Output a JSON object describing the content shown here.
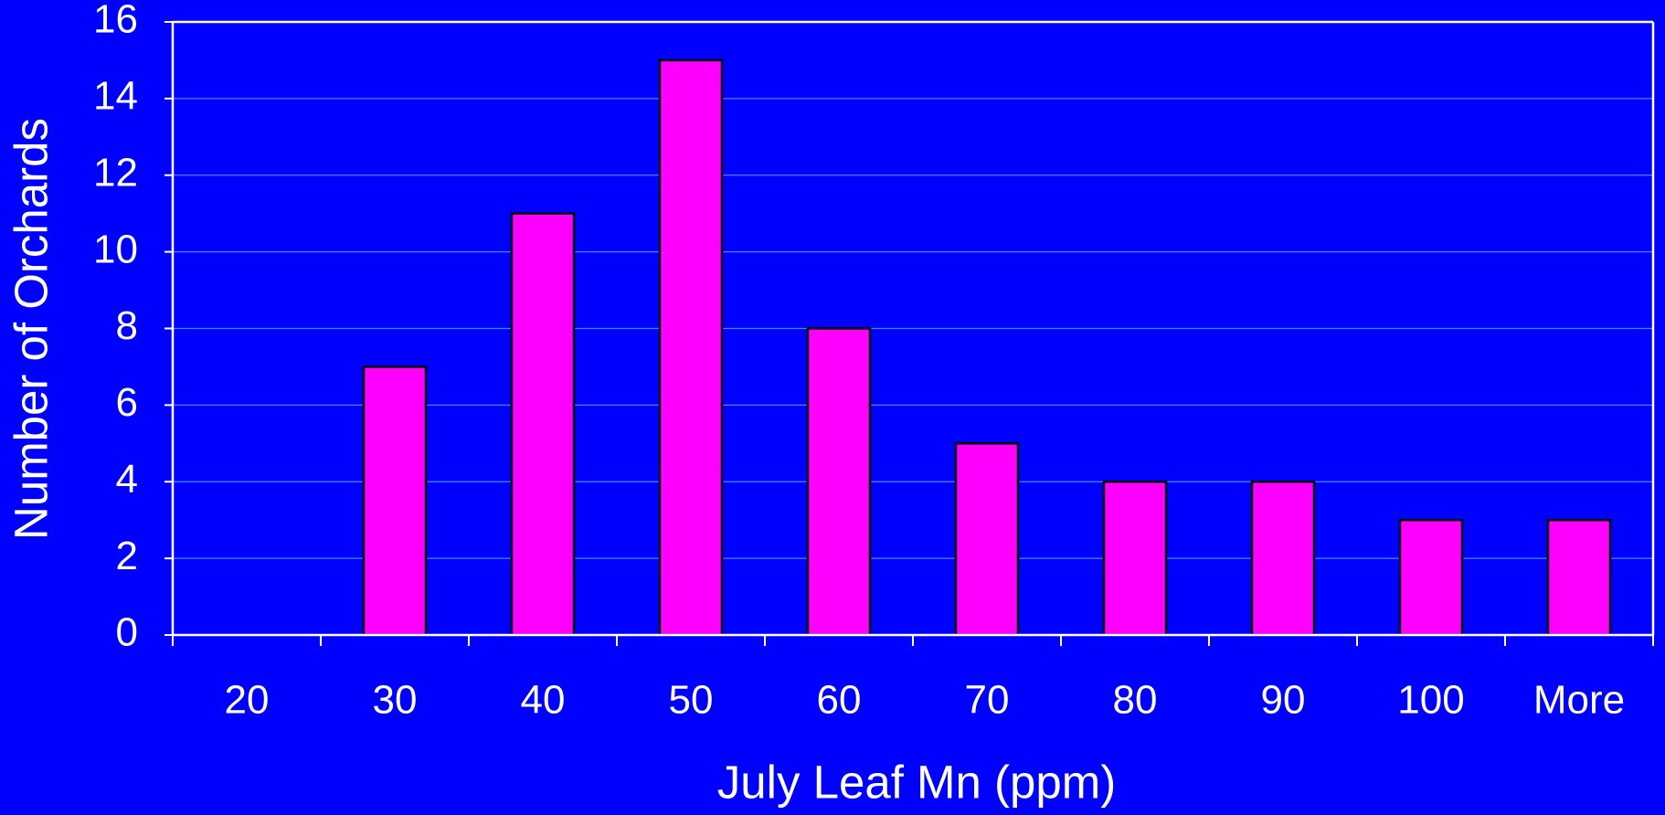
{
  "chart_data": {
    "type": "bar",
    "x_label": "July Leaf Mn (ppm)",
    "y_label": "Number of Orchards",
    "categories": [
      "20",
      "30",
      "40",
      "50",
      "60",
      "70",
      "80",
      "90",
      "100",
      "More"
    ],
    "values": [
      0,
      7,
      11,
      15,
      8,
      5,
      4,
      4,
      3,
      3
    ],
    "color": "#ff00ff",
    "ylim": [
      0,
      16
    ],
    "yticks": [
      0,
      2,
      4,
      6,
      8,
      10,
      12,
      14,
      16
    ],
    "grid": true
  }
}
